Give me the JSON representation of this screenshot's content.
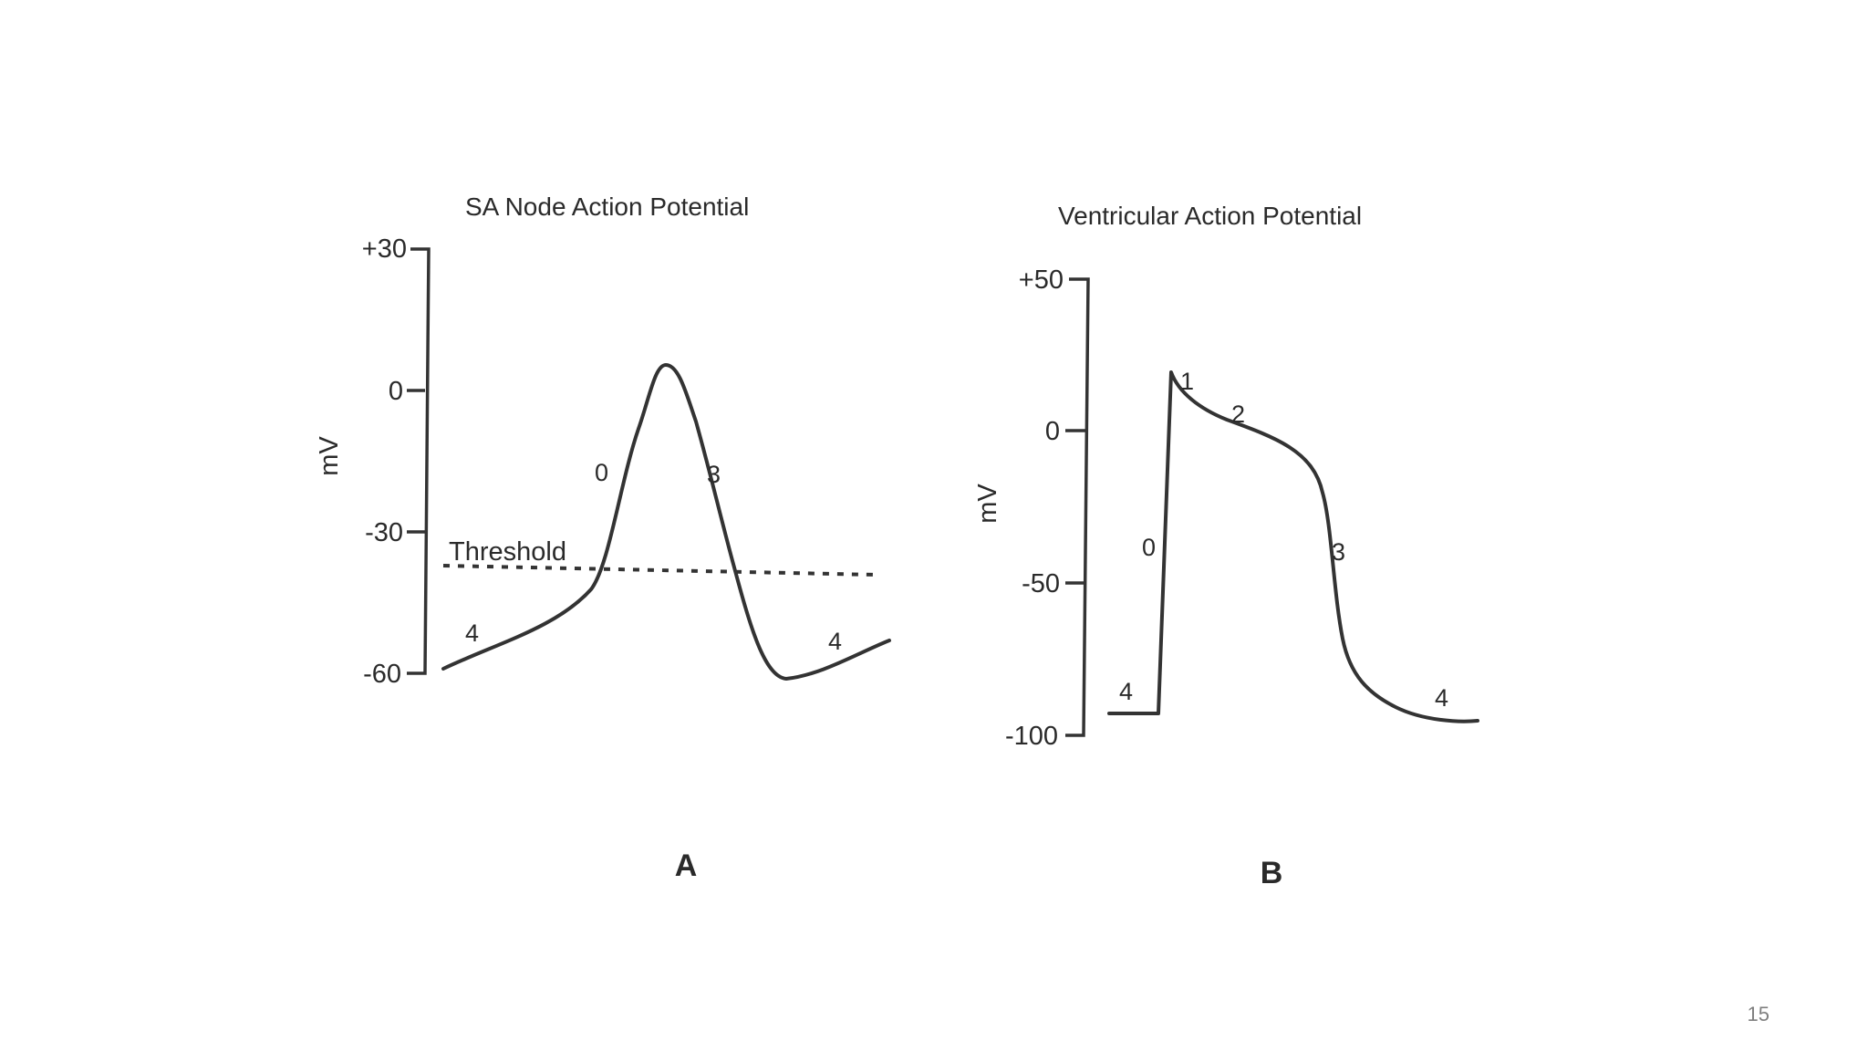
{
  "slide_number": "15",
  "panel_a": {
    "title": "SA Node Action Potential",
    "ylabel": "mV",
    "ticks": [
      "+30",
      "0",
      "-30",
      "-60"
    ],
    "threshold_label": "Threshold",
    "phase_labels": [
      "4",
      "0",
      "3",
      "4"
    ],
    "letter": "A"
  },
  "panel_b": {
    "title": "Ventricular Action Potential",
    "ylabel": "mV",
    "ticks": [
      "+50",
      "0",
      "-50",
      "-100"
    ],
    "phase_labels": [
      "0",
      "1",
      "2",
      "3",
      "4",
      "4"
    ],
    "letter": "B"
  }
}
